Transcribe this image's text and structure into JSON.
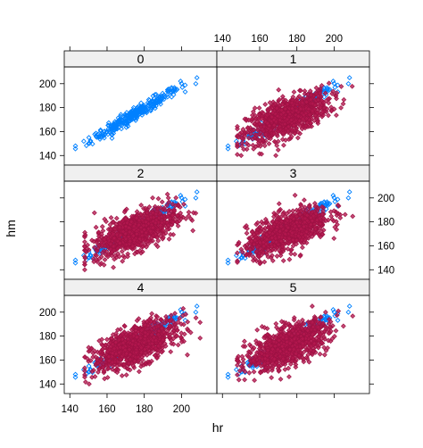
{
  "chart_data": {
    "type": "scatter",
    "layout": "lattice 2 columns x 3 rows",
    "xlabel": "hr",
    "ylabel": "hm",
    "x_ticks": [
      140,
      160,
      180,
      200
    ],
    "y_ticks": [
      140,
      160,
      180,
      200
    ],
    "xlim": [
      137,
      219
    ],
    "ylim": [
      132,
      214
    ],
    "panels": [
      {
        "label": "0"
      },
      {
        "label": "1"
      },
      {
        "label": "2"
      },
      {
        "label": "3"
      },
      {
        "label": "4"
      },
      {
        "label": "5"
      }
    ],
    "reference_series": {
      "marker": "open diamond",
      "color": "#0080ff",
      "relationship": "hm ≈ hr (tight linear band, r ≈ 0.97)",
      "x_range": [
        143,
        215
      ],
      "y_range": [
        143,
        208
      ]
    },
    "panel_series": {
      "marker": "filled diamond",
      "color": "#b5184f",
      "relationship": "hm increases with hr (broad elliptical cloud, r ≈ 0.6)",
      "x_range": [
        148,
        210
      ],
      "y_range": [
        140,
        205
      ],
      "center": [
        175,
        172
      ]
    }
  },
  "labels": {
    "xlabel": "hr",
    "ylabel": "hm",
    "strips": [
      "0",
      "1",
      "2",
      "3",
      "4",
      "5"
    ]
  }
}
